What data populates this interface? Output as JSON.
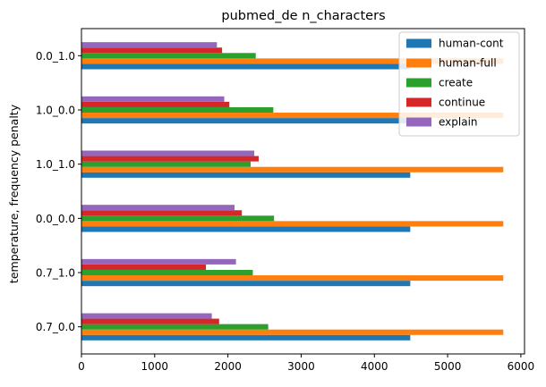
{
  "chart_data": {
    "type": "bar",
    "orientation": "horizontal",
    "title": "pubmed_de n_characters",
    "xlabel": "",
    "ylabel": "temperature, frequency penalty",
    "categories": [
      "0.7_0.0",
      "0.7_1.0",
      "0.0_0.0",
      "1.0_1.0",
      "1.0_0.0",
      "0.0_1.0"
    ],
    "xlim": [
      0,
      6050
    ],
    "xticks": [
      0,
      1000,
      2000,
      3000,
      4000,
      5000,
      6000
    ],
    "grid": false,
    "legend_position": "top-right",
    "series": [
      {
        "name": "human-cont",
        "color": "#1f77b4",
        "values": [
          4490,
          4490,
          4490,
          4490,
          4490,
          4490
        ]
      },
      {
        "name": "human-full",
        "color": "#ff7f0e",
        "values": [
          5760,
          5760,
          5760,
          5760,
          5760,
          5760
        ]
      },
      {
        "name": "create",
        "color": "#2ca02c",
        "values": [
          2550,
          2340,
          2630,
          2310,
          2620,
          2380
        ]
      },
      {
        "name": "continue",
        "color": "#d62728",
        "values": [
          1880,
          1700,
          2190,
          2420,
          2020,
          1920
        ]
      },
      {
        "name": "explain",
        "color": "#9467bd",
        "values": [
          1780,
          2110,
          2090,
          2360,
          1950,
          1850
        ]
      }
    ]
  }
}
